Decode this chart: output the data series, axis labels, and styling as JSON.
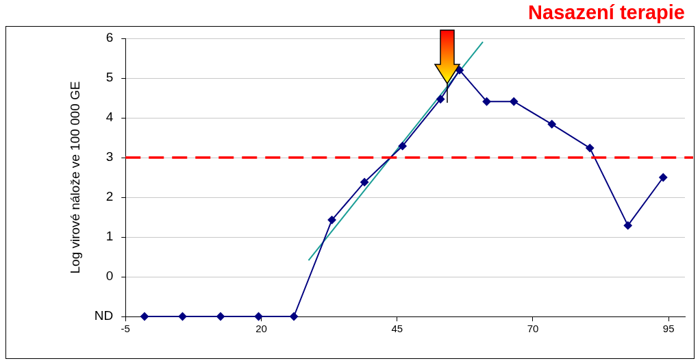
{
  "chart_data": {
    "type": "line",
    "ylabel": "Log virové nálože ve 100 000 GE",
    "legend": false,
    "grid": "y",
    "marker": "diamond",
    "xlim": [
      -5,
      98
    ],
    "xticks": [
      -5,
      20,
      45,
      70,
      95
    ],
    "ylim": [
      -1,
      6
    ],
    "yticks": [
      {
        "value": -1,
        "label": "ND"
      },
      0,
      1,
      2,
      3,
      4,
      5,
      6
    ],
    "series": [
      {
        "color": "#000080",
        "x": [
          -1.5,
          5.5,
          12.5,
          19.5,
          26,
          33,
          39,
          46,
          53,
          56.5,
          61.5,
          66.5,
          73.5,
          80.5,
          87.5,
          94
        ],
        "values": [
          -1,
          -1,
          -1,
          -1,
          -1,
          1.43,
          2.38,
          3.29,
          4.47,
          5.2,
          4.41,
          4.41,
          3.84,
          3.24,
          1.29,
          2.5
        ]
      },
      {
        "type": "line",
        "color": "#1a9e96",
        "marker": "none",
        "x": [
          28.7,
          60.8
        ],
        "values": [
          0.41,
          5.91
        ]
      }
    ],
    "ref_lines": [
      {
        "axis": "y",
        "value": 3,
        "color": "#ff0000",
        "line_style": "dashed"
      }
    ],
    "annotations": [
      "Nasazení terapie"
    ]
  }
}
